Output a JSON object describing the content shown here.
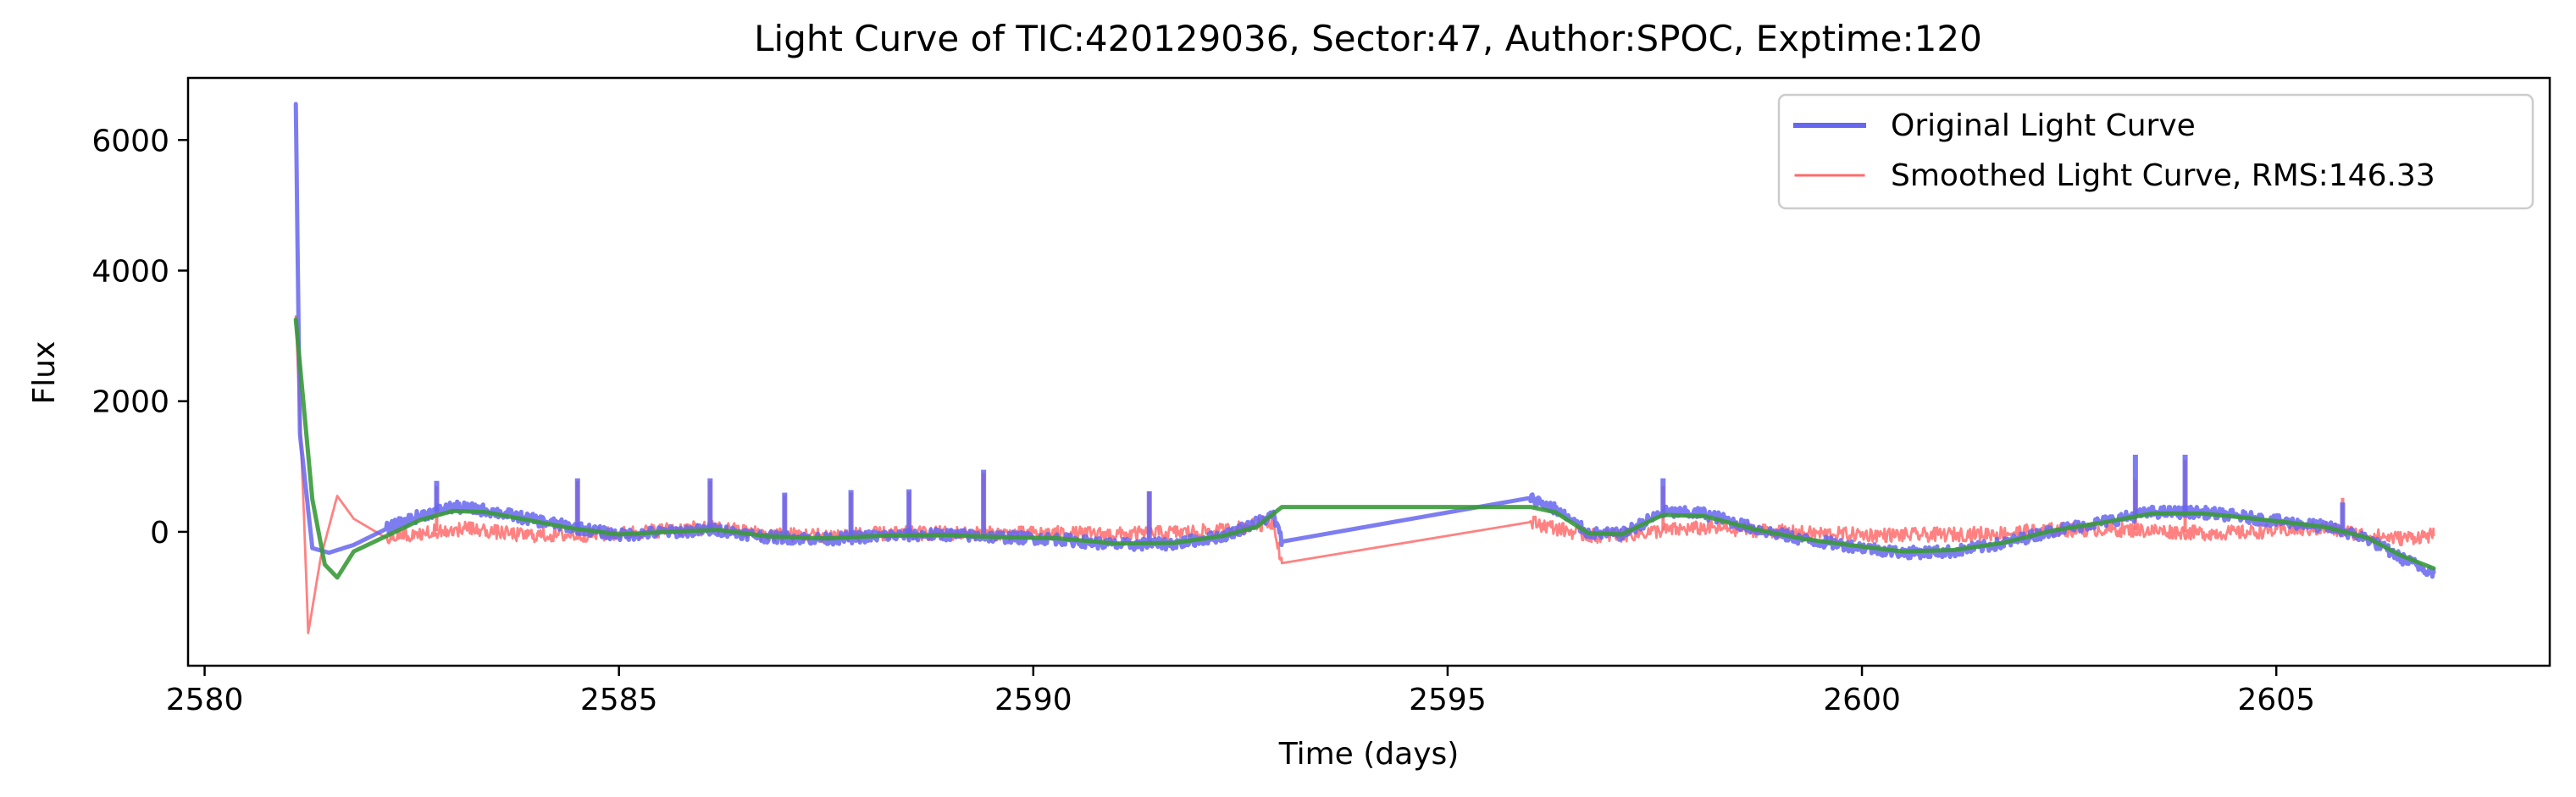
{
  "chart_data": {
    "type": "line",
    "title": "Light Curve of TIC:420129036, Sector:47, Author:SPOC, Exptime:120",
    "xlabel": "Time (days)",
    "ylabel": "Flux",
    "xlim": [
      2579.8,
      2608.3
    ],
    "ylim": [
      -2050,
      6950
    ],
    "xticks": [
      2580,
      2585,
      2590,
      2595,
      2600,
      2605
    ],
    "xtick_labels": [
      "2580",
      "2585",
      "2590",
      "2595",
      "2600",
      "2605"
    ],
    "yticks": [
      0,
      2000,
      4000,
      6000
    ],
    "ytick_labels": [
      "0",
      "2000",
      "4000",
      "6000"
    ],
    "grid": false,
    "legend_position": "upper right",
    "series": [
      {
        "name": "Original Light Curve",
        "color": "#6666ee",
        "legend": true,
        "x": [
          2581.1,
          2581.15,
          2581.3,
          2581.5,
          2581.8,
          2582.2,
          2582.6,
          2583.0,
          2583.4,
          2583.9,
          2584.4,
          2585.0,
          2585.6,
          2586.2,
          2586.8,
          2587.5,
          2588.2,
          2588.9,
          2589.6,
          2590.3,
          2591.0,
          2591.7,
          2592.3,
          2592.9,
          2593.0,
          2596.0,
          2596.3,
          2596.7,
          2597.1,
          2597.6,
          2598.1,
          2598.7,
          2599.3,
          2599.9,
          2600.5,
          2601.1,
          2601.7,
          2602.3,
          2602.9,
          2603.5,
          2604.1,
          2604.6,
          2605.1,
          2605.6,
          2606.1,
          2606.5,
          2606.9
        ],
        "y": [
          6550,
          1500,
          -250,
          -320,
          -200,
          50,
          250,
          380,
          330,
          200,
          80,
          -50,
          0,
          30,
          -80,
          -110,
          -60,
          -40,
          -80,
          -110,
          -200,
          -180,
          -60,
          250,
          -150,
          520,
          350,
          -20,
          -40,
          300,
          280,
          50,
          -120,
          -220,
          -320,
          -300,
          -180,
          20,
          150,
          300,
          300,
          230,
          150,
          80,
          -100,
          -400,
          -620
        ],
        "spikes": [
          [
            2582.8,
            780
          ],
          [
            2584.5,
            820
          ],
          [
            2586.1,
            820
          ],
          [
            2587.0,
            600
          ],
          [
            2587.8,
            640
          ],
          [
            2588.5,
            650
          ],
          [
            2589.4,
            950
          ],
          [
            2591.4,
            620
          ],
          [
            2597.6,
            820
          ],
          [
            2603.3,
            1180
          ],
          [
            2603.9,
            1180
          ],
          [
            2605.8,
            450
          ]
        ]
      },
      {
        "name": "Smoothed Light Curve, RMS:146.33",
        "color": "#ff6b6b",
        "legend": true,
        "x": [
          2581.1,
          2581.2,
          2581.25,
          2581.4,
          2581.6,
          2581.8,
          2582.2,
          2582.7,
          2583.2,
          2583.8,
          2584.4,
          2585.0,
          2585.6,
          2586.2,
          2586.8,
          2587.5,
          2588.2,
          2588.9,
          2589.6,
          2590.3,
          2591.0,
          2591.7,
          2592.3,
          2592.9,
          2593.0,
          2596.0,
          2596.3,
          2596.7,
          2597.1,
          2597.6,
          2598.1,
          2598.7,
          2599.3,
          2599.9,
          2600.5,
          2601.1,
          2601.7,
          2602.3,
          2602.9,
          2603.5,
          2604.1,
          2604.6,
          2605.1,
          2605.6,
          2606.1,
          2606.5,
          2606.9
        ],
        "y": [
          3300,
          200,
          -1550,
          -400,
          550,
          200,
          -100,
          0,
          50,
          -50,
          -50,
          -30,
          40,
          60,
          -40,
          -50,
          -30,
          -20,
          -30,
          -20,
          -40,
          -10,
          20,
          150,
          -480,
          150,
          60,
          -60,
          -50,
          20,
          60,
          30,
          -20,
          -40,
          -50,
          -40,
          -20,
          30,
          40,
          20,
          -20,
          -10,
          30,
          50,
          -50,
          -100,
          -50
        ],
        "spikes": [
          [
            2582.8,
            700
          ],
          [
            2584.5,
            780
          ],
          [
            2586.1,
            780
          ],
          [
            2587.0,
            560
          ],
          [
            2587.8,
            600
          ],
          [
            2588.5,
            610
          ],
          [
            2589.4,
            900
          ],
          [
            2591.4,
            620
          ],
          [
            2597.6,
            700
          ],
          [
            2603.3,
            800
          ],
          [
            2603.9,
            1100
          ],
          [
            2605.8,
            520
          ]
        ]
      },
      {
        "name": "",
        "color": "#3a9a3a",
        "legend": false,
        "x": [
          2581.1,
          2581.3,
          2581.45,
          2581.6,
          2581.8,
          2582.2,
          2582.6,
          2583.0,
          2583.4,
          2583.9,
          2584.4,
          2585.0,
          2585.6,
          2586.2,
          2586.8,
          2587.5,
          2588.2,
          2588.9,
          2589.6,
          2590.3,
          2591.0,
          2591.7,
          2592.3,
          2592.7,
          2593.0,
          2596.0,
          2596.3,
          2596.7,
          2597.1,
          2597.6,
          2598.1,
          2598.7,
          2599.3,
          2599.9,
          2600.5,
          2601.1,
          2601.7,
          2602.3,
          2602.9,
          2603.5,
          2604.1,
          2604.6,
          2605.1,
          2605.6,
          2606.1,
          2606.5,
          2606.9
        ],
        "y": [
          3250,
          500,
          -500,
          -700,
          -300,
          -60,
          180,
          320,
          300,
          180,
          60,
          -40,
          0,
          30,
          -70,
          -100,
          -60,
          -50,
          -80,
          -100,
          -180,
          -170,
          -60,
          80,
          380,
          380,
          300,
          -20,
          -40,
          260,
          240,
          40,
          -110,
          -210,
          -300,
          -280,
          -170,
          20,
          140,
          280,
          280,
          220,
          150,
          70,
          -90,
          -360,
          -560
        ]
      }
    ]
  }
}
